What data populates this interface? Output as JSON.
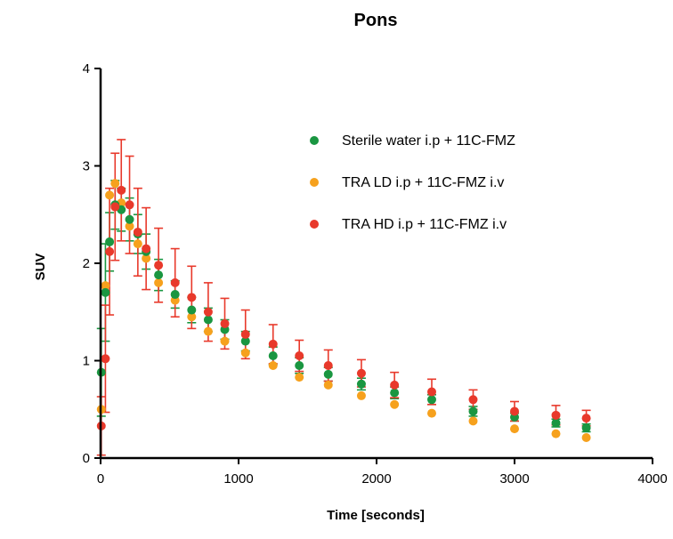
{
  "chart_data": {
    "type": "scatter",
    "title": "Pons",
    "xlabel": "Time [seconds]",
    "ylabel": "SUV",
    "xlim": [
      0,
      4000
    ],
    "ylim": [
      0,
      4
    ],
    "xticks": [
      0,
      1000,
      2000,
      3000,
      4000
    ],
    "yticks": [
      0,
      1,
      2,
      3,
      4
    ],
    "grid": false,
    "legend_position": "top-right",
    "error_bars": true,
    "series": [
      {
        "name": "Sterile water i.p + 11C-FMZ",
        "color": "#1a9641",
        "x": [
          5,
          35,
          65,
          105,
          150,
          210,
          270,
          330,
          420,
          540,
          660,
          780,
          900,
          1050,
          1250,
          1440,
          1650,
          1890,
          2130,
          2400,
          2700,
          3000,
          3300,
          3520
        ],
        "y": [
          0.88,
          1.7,
          2.22,
          2.6,
          2.55,
          2.45,
          2.3,
          2.12,
          1.88,
          1.68,
          1.52,
          1.42,
          1.32,
          1.2,
          1.05,
          0.95,
          0.86,
          0.76,
          0.67,
          0.6,
          0.48,
          0.42,
          0.36,
          0.31
        ],
        "err": [
          0.45,
          0.5,
          0.3,
          0.25,
          0.22,
          0.22,
          0.2,
          0.18,
          0.16,
          0.14,
          0.13,
          0.12,
          0.1,
          0.1,
          0.09,
          0.08,
          0.07,
          0.06,
          0.06,
          0.05,
          0.05,
          0.04,
          0.04,
          0.04
        ]
      },
      {
        "name": "TRA LD i.p + 11C-FMZ i.v",
        "color": "#f6a11d",
        "x": [
          5,
          35,
          65,
          105,
          150,
          210,
          270,
          330,
          420,
          540,
          660,
          780,
          900,
          1050,
          1250,
          1440,
          1650,
          1890,
          2130,
          2400,
          2700,
          3000,
          3300,
          3520
        ],
        "y": [
          0.5,
          1.77,
          2.7,
          2.82,
          2.62,
          2.38,
          2.2,
          2.05,
          1.8,
          1.62,
          1.45,
          1.3,
          1.2,
          1.08,
          0.95,
          0.83,
          0.75,
          0.64,
          0.55,
          0.46,
          0.38,
          0.3,
          0.25,
          0.21
        ]
      },
      {
        "name": "TRA HD i.p + 11C-FMZ i.v",
        "color": "#e8392b",
        "x": [
          5,
          35,
          65,
          105,
          150,
          210,
          270,
          330,
          420,
          540,
          660,
          780,
          900,
          1050,
          1250,
          1440,
          1650,
          1890,
          2130,
          2400,
          2700,
          3000,
          3300,
          3520
        ],
        "y": [
          0.33,
          1.02,
          2.12,
          2.58,
          2.75,
          2.6,
          2.32,
          2.15,
          1.98,
          1.8,
          1.65,
          1.5,
          1.38,
          1.27,
          1.17,
          1.05,
          0.95,
          0.87,
          0.75,
          0.68,
          0.6,
          0.48,
          0.44,
          0.41
        ],
        "err": [
          0.3,
          0.55,
          0.65,
          0.55,
          0.52,
          0.5,
          0.45,
          0.42,
          0.38,
          0.35,
          0.32,
          0.3,
          0.26,
          0.25,
          0.2,
          0.16,
          0.16,
          0.14,
          0.13,
          0.13,
          0.1,
          0.1,
          0.1,
          0.08
        ]
      }
    ]
  }
}
